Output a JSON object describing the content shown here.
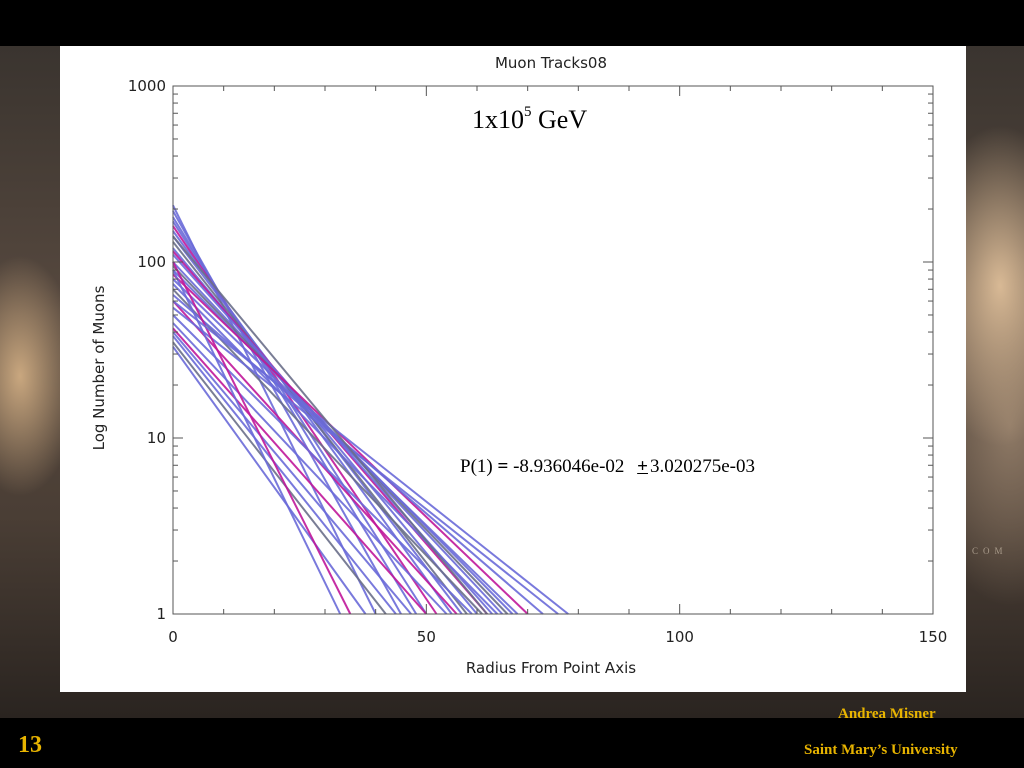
{
  "slide": {
    "number": "13",
    "author": "Andrea Misner",
    "affiliation": "Saint Mary’s University",
    "watermark": "COM"
  },
  "annotations": {
    "energy": {
      "base": "1x10",
      "exponent": "5",
      "unit": "GeV"
    },
    "fit": {
      "label": "P(1)",
      "equals": "=",
      "value": "-8.936046e-02",
      "plus_minus": "+",
      "error": "3.020275e-03"
    }
  },
  "colors": {
    "series_blue": "#6a6ad8",
    "series_magenta": "#c0179a",
    "series_gray": "#6a6f8a",
    "accent": "#e8b400"
  },
  "chart_data": {
    "type": "line",
    "title": "Muon Tracks08",
    "xlabel": "Radius From Point Axis",
    "ylabel": "Log Number of Muons",
    "xlim": [
      0,
      150
    ],
    "ylim": [
      1,
      1000
    ],
    "yscale": "log",
    "xticks": [
      "0",
      "50",
      "100",
      "150"
    ],
    "yticks": [
      "1",
      "10",
      "100",
      "1000"
    ],
    "grid": false,
    "series": [
      {
        "color": "#6a6ad8",
        "points": [
          [
            0,
            210
          ],
          [
            40,
            1
          ]
        ]
      },
      {
        "color": "#6a6ad8",
        "points": [
          [
            0,
            195
          ],
          [
            45,
            1
          ]
        ]
      },
      {
        "color": "#6a6ad8",
        "points": [
          [
            0,
            180
          ],
          [
            48,
            1
          ]
        ]
      },
      {
        "color": "#6a6ad8",
        "points": [
          [
            0,
            170
          ],
          [
            50,
            1
          ]
        ]
      },
      {
        "color": "#c0179a",
        "points": [
          [
            0,
            160
          ],
          [
            52,
            1
          ]
        ]
      },
      {
        "color": "#6a6ad8",
        "points": [
          [
            0,
            150
          ],
          [
            55,
            1
          ]
        ]
      },
      {
        "color": "#6a6ad8",
        "points": [
          [
            0,
            140
          ],
          [
            57,
            1
          ]
        ]
      },
      {
        "color": "#6a6f8a",
        "points": [
          [
            0,
            130
          ],
          [
            58,
            1
          ]
        ]
      },
      {
        "color": "#6a6ad8",
        "points": [
          [
            0,
            120
          ],
          [
            60,
            1
          ]
        ]
      },
      {
        "color": "#c0179a",
        "points": [
          [
            0,
            115
          ],
          [
            62,
            1
          ]
        ]
      },
      {
        "color": "#6a6ad8",
        "points": [
          [
            0,
            110
          ],
          [
            63,
            1
          ]
        ]
      },
      {
        "color": "#6a6ad8",
        "points": [
          [
            0,
            100
          ],
          [
            65,
            1
          ]
        ]
      },
      {
        "color": "#6a6f8a",
        "points": [
          [
            0,
            95
          ],
          [
            66,
            1
          ]
        ]
      },
      {
        "color": "#6a6ad8",
        "points": [
          [
            0,
            90
          ],
          [
            67,
            1
          ]
        ]
      },
      {
        "color": "#c0179a",
        "points": [
          [
            0,
            85
          ],
          [
            70,
            1
          ]
        ]
      },
      {
        "color": "#6a6ad8",
        "points": [
          [
            0,
            80
          ],
          [
            68,
            1
          ]
        ]
      },
      {
        "color": "#6a6ad8",
        "points": [
          [
            0,
            75
          ],
          [
            64,
            1
          ]
        ]
      },
      {
        "color": "#6a6f8a",
        "points": [
          [
            0,
            70
          ],
          [
            61,
            1
          ]
        ]
      },
      {
        "color": "#6a6ad8",
        "points": [
          [
            0,
            65
          ],
          [
            73,
            1
          ]
        ]
      },
      {
        "color": "#c0179a",
        "points": [
          [
            0,
            60
          ],
          [
            56,
            1
          ]
        ]
      },
      {
        "color": "#6a6ad8",
        "points": [
          [
            0,
            55
          ],
          [
            76,
            1
          ]
        ]
      },
      {
        "color": "#6a6ad8",
        "points": [
          [
            0,
            50
          ],
          [
            59,
            1
          ]
        ]
      },
      {
        "color": "#6a6ad8",
        "points": [
          [
            0,
            45
          ],
          [
            54,
            1
          ]
        ]
      },
      {
        "color": "#c0179a",
        "points": [
          [
            0,
            42
          ],
          [
            50,
            1
          ]
        ]
      },
      {
        "color": "#6a6ad8",
        "points": [
          [
            0,
            40
          ],
          [
            47,
            1
          ]
        ]
      },
      {
        "color": "#6a6ad8",
        "points": [
          [
            0,
            38
          ],
          [
            44,
            1
          ]
        ]
      },
      {
        "color": "#6a6f8a",
        "points": [
          [
            0,
            35
          ],
          [
            42,
            1
          ]
        ]
      },
      {
        "color": "#6a6ad8",
        "points": [
          [
            0,
            33
          ],
          [
            38,
            1
          ]
        ]
      },
      {
        "color": "#c0179a",
        "points": [
          [
            0,
            100
          ],
          [
            35,
            1
          ]
        ]
      },
      {
        "color": "#6a6ad8",
        "points": [
          [
            0,
            90
          ],
          [
            33,
            1
          ]
        ]
      },
      {
        "color": "#6a6ad8",
        "points": [
          [
            0,
            60
          ],
          [
            78,
            1
          ]
        ]
      },
      {
        "color": "#6a6f8a",
        "points": [
          [
            0,
            140
          ],
          [
            62,
            1
          ]
        ]
      }
    ]
  }
}
